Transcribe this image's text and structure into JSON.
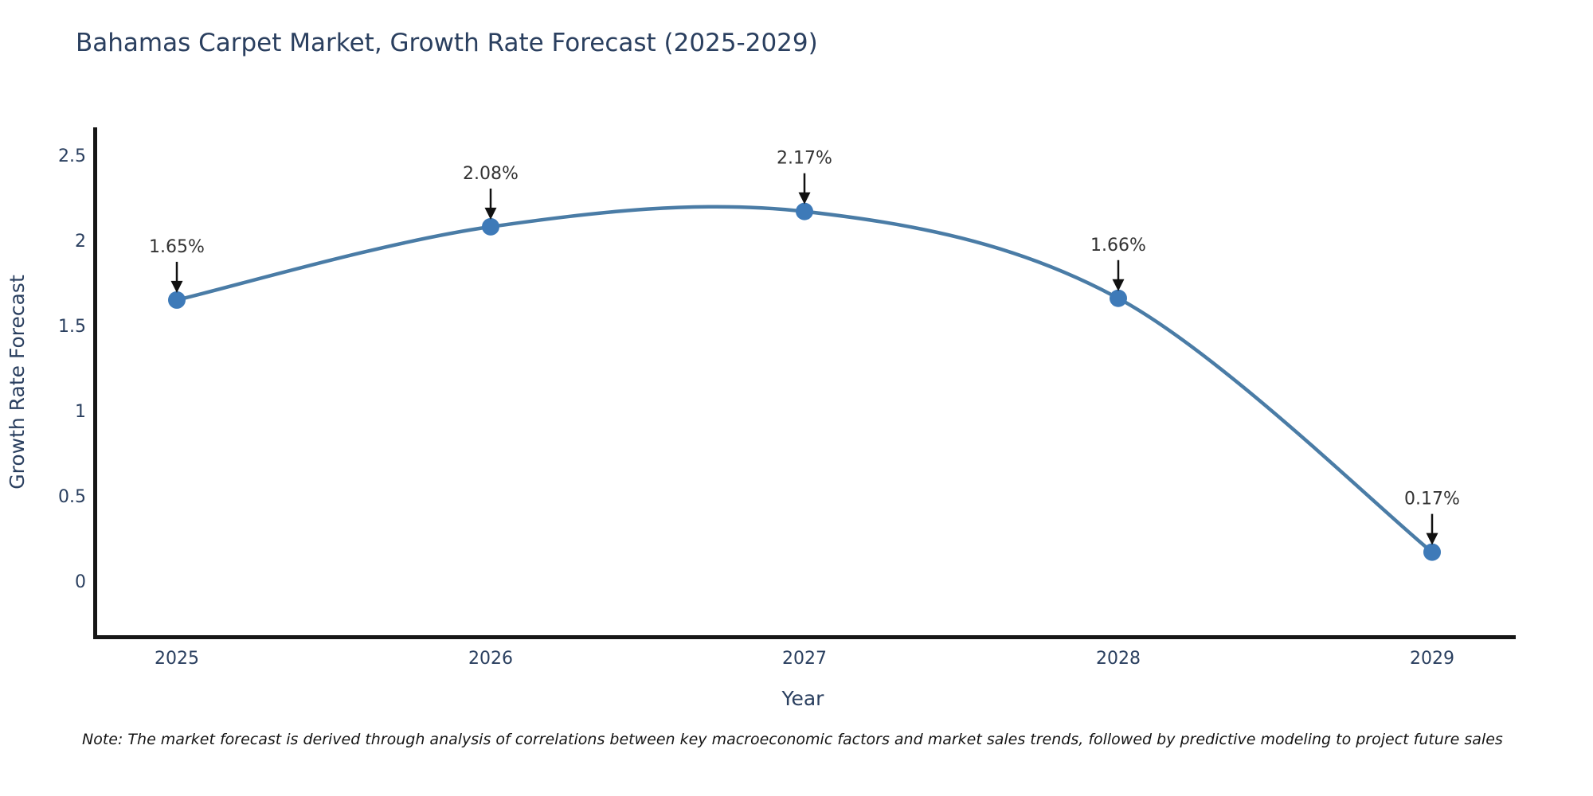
{
  "title": "Bahamas Carpet Market, Growth Rate Forecast (2025-2029)",
  "note": "Note: The market forecast is derived through analysis of correlations between key macroeconomic factors and market sales trends, followed by predictive modeling to project future sales",
  "chart_data": {
    "type": "line",
    "title": "Bahamas Carpet Market, Growth Rate Forecast (2025-2029)",
    "xlabel": "Year",
    "ylabel": "Growth Rate Forecast",
    "x": [
      2025,
      2026,
      2027,
      2028,
      2029
    ],
    "values": [
      1.65,
      2.08,
      2.17,
      1.66,
      0.17
    ],
    "point_labels": [
      "1.65%",
      "2.08%",
      "2.17%",
      "1.66%",
      "0.17%"
    ],
    "xtick_labels": [
      "2025",
      "2026",
      "2027",
      "2028",
      "2029"
    ],
    "ytick_labels": [
      "2.5",
      "2",
      "1.5",
      "1",
      "0.5",
      "0"
    ],
    "ytick_values": [
      2.5,
      2,
      1.5,
      1,
      0.5,
      0
    ],
    "ylim": [
      -0.34,
      2.66
    ],
    "grid": false,
    "legend": false,
    "curve": "spline",
    "line_color": "#4a7ca6",
    "marker_color": "#3e7ab8",
    "axis_color": "#161616",
    "title_color": "#2a3f5f"
  }
}
